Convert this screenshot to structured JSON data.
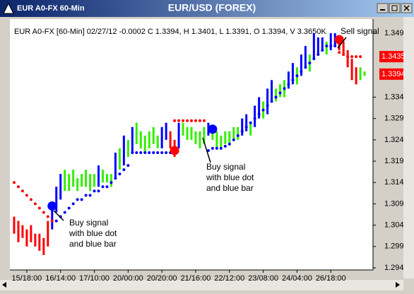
{
  "window_title": "EUR A0-FX 60-Min",
  "chart_data": {
    "type": "bar",
    "title": "EUR/USD (FOREX)",
    "subtitle": "EUR A0-FX [60-Min] 02/27/12  -0.0002 C 1.3394, H 1.3401, L 1.3391, O 1.3394, V 3.3650K",
    "x": [
      0,
      1,
      2,
      3,
      4,
      5,
      6,
      7,
      8,
      9,
      10,
      11,
      12,
      13,
      14,
      15,
      16,
      17,
      18,
      19,
      20,
      21,
      22,
      23,
      24,
      25,
      26,
      27,
      28,
      29,
      30,
      31,
      32,
      33,
      34,
      35,
      36,
      37,
      38,
      39,
      40,
      41,
      42,
      43,
      44,
      45,
      46,
      47,
      48,
      49,
      50,
      51,
      52,
      53,
      54,
      55,
      56,
      57,
      58,
      59,
      60,
      61,
      62,
      63,
      64,
      65,
      66,
      67,
      68,
      69,
      70,
      71,
      72,
      73,
      74,
      75,
      76,
      77,
      78,
      79,
      80,
      81,
      82,
      83
    ],
    "high": [
      1.306,
      1.305,
      1.304,
      1.303,
      1.304,
      1.302,
      1.302,
      1.301,
      1.305,
      1.309,
      1.313,
      1.316,
      1.317,
      1.316,
      1.317,
      1.315,
      1.316,
      1.317,
      1.316,
      1.316,
      1.318,
      1.317,
      1.316,
      1.316,
      1.321,
      1.322,
      1.325,
      1.324,
      1.327,
      1.328,
      1.326,
      1.325,
      1.326,
      1.327,
      1.325,
      1.327,
      1.328,
      1.326,
      1.324,
      1.328,
      1.328,
      1.327,
      1.327,
      1.326,
      1.326,
      1.327,
      1.328,
      1.327,
      1.326,
      1.325,
      1.326,
      1.326,
      1.327,
      1.327,
      1.329,
      1.33,
      1.328,
      1.332,
      1.334,
      1.333,
      1.336,
      1.338,
      1.336,
      1.337,
      1.338,
      1.34,
      1.342,
      1.341,
      1.344,
      1.346,
      1.344,
      1.349,
      1.348,
      1.348,
      1.347,
      1.349,
      1.349,
      1.348,
      1.347,
      1.345,
      1.343,
      1.341,
      1.341,
      1.34
    ],
    "low": [
      1.302,
      1.3,
      1.301,
      1.299,
      1.3,
      1.299,
      1.298,
      1.297,
      1.299,
      1.303,
      1.307,
      1.31,
      1.312,
      1.312,
      1.313,
      1.312,
      1.313,
      1.313,
      1.312,
      1.313,
      1.313,
      1.314,
      1.314,
      1.313,
      1.315,
      1.317,
      1.318,
      1.32,
      1.321,
      1.323,
      1.322,
      1.321,
      1.322,
      1.323,
      1.322,
      1.322,
      1.324,
      1.322,
      1.32,
      1.322,
      1.325,
      1.324,
      1.324,
      1.323,
      1.322,
      1.323,
      1.325,
      1.324,
      1.322,
      1.322,
      1.323,
      1.323,
      1.324,
      1.324,
      1.325,
      1.326,
      1.325,
      1.327,
      1.329,
      1.329,
      1.33,
      1.333,
      1.333,
      1.334,
      1.334,
      1.336,
      1.337,
      1.337,
      1.339,
      1.341,
      1.34,
      1.343,
      1.344,
      1.345,
      1.344,
      1.345,
      1.346,
      1.345,
      1.344,
      1.341,
      1.338,
      1.337,
      1.338,
      1.339
    ],
    "bar_colors": [
      "#ff0000",
      "#ff0000",
      "#ff0000",
      "#ff0000",
      "#ff0000",
      "#ff0000",
      "#ff0000",
      "#ff0000",
      "#ff0000",
      "#0000ff",
      "#0000ff",
      "#0000ff",
      "#33ee00",
      "#33ee00",
      "#33ee00",
      "#33ee00",
      "#33ee00",
      "#33ee00",
      "#33ee00",
      "#33ee00",
      "#0000ff",
      "#33ee00",
      "#33ee00",
      "#33ee00",
      "#0000ff",
      "#33ee00",
      "#0000ff",
      "#33ee00",
      "#0000ff",
      "#33ee00",
      "#33ee00",
      "#33ee00",
      "#33ee00",
      "#33ee00",
      "#33ee00",
      "#0000ff",
      "#0000ff",
      "#ff0000",
      "#ff0000",
      "#0000ff",
      "#33ee00",
      "#33ee00",
      "#33ee00",
      "#33ee00",
      "#33ee00",
      "#33ee00",
      "#0000ff",
      "#33ee00",
      "#33ee00",
      "#33ee00",
      "#33ee00",
      "#33ee00",
      "#33ee00",
      "#33ee00",
      "#0000ff",
      "#0000ff",
      "#33ee00",
      "#0000ff",
      "#0000ff",
      "#33ee00",
      "#0000ff",
      "#0000ff",
      "#33ee00",
      "#33ee00",
      "#33ee00",
      "#0000ff",
      "#0000ff",
      "#33ee00",
      "#0000ff",
      "#0000ff",
      "#33ee00",
      "#0000ff",
      "#0000ff",
      "#0000ff",
      "#33ee00",
      "#0000ff",
      "#0000ff",
      "#ff0000",
      "#ff0000",
      "#ff0000",
      "#ff0000",
      "#ff0000",
      "#33ee00",
      "#33ee00"
    ],
    "stops": [
      1.314,
      1.313,
      1.312,
      1.311,
      1.31,
      1.309,
      1.308,
      1.307,
      1.306,
      1.305,
      1.305,
      1.306,
      1.307,
      1.308,
      1.309,
      1.31,
      1.31,
      1.311,
      1.311,
      1.312,
      1.312,
      1.313,
      1.313,
      1.314,
      1.315,
      1.316,
      1.317,
      1.318,
      1.321,
      1.321,
      1.321,
      1.321,
      1.321,
      1.321,
      1.321,
      1.321,
      1.321,
      1.321,
      1.3285,
      1.3285,
      1.3285,
      1.3285,
      1.3285,
      1.3285,
      1.3285,
      1.3285,
      1.3215,
      1.322,
      1.322,
      1.322,
      1.3225,
      1.323,
      1.324,
      1.325,
      1.326,
      1.327,
      1.328,
      1.329,
      1.33,
      1.331,
      1.332,
      1.333,
      1.334,
      1.335,
      1.336,
      1.337,
      1.338,
      1.339,
      1.34,
      1.341,
      1.342,
      1.343,
      1.344,
      1.345,
      1.346,
      1.346,
      1.346,
      1.3445,
      1.344,
      1.3435,
      1.3435,
      1.3435,
      1.3435,
      null
    ],
    "stop_colors": [
      "#ff0000",
      "#ff0000",
      "#ff0000",
      "#ff0000",
      "#ff0000",
      "#ff0000",
      "#ff0000",
      "#ff0000",
      "#ff0000",
      "#ff0000",
      "#0000ff",
      "#0000ff",
      "#0000ff",
      "#0000ff",
      "#0000ff",
      "#0000ff",
      "#0000ff",
      "#0000ff",
      "#0000ff",
      "#0000ff",
      "#0000ff",
      "#0000ff",
      "#0000ff",
      "#0000ff",
      "#0000ff",
      "#0000ff",
      "#0000ff",
      "#0000ff",
      "#0000ff",
      "#0000ff",
      "#0000ff",
      "#0000ff",
      "#0000ff",
      "#0000ff",
      "#0000ff",
      "#0000ff",
      "#0000ff",
      "#0000ff",
      "#ff0000",
      "#ff0000",
      "#ff0000",
      "#ff0000",
      "#ff0000",
      "#ff0000",
      "#ff0000",
      "#ff0000",
      "#0000ff",
      "#0000ff",
      "#0000ff",
      "#0000ff",
      "#0000ff",
      "#0000ff",
      "#0000ff",
      "#0000ff",
      "#0000ff",
      "#0000ff",
      "#0000ff",
      "#0000ff",
      "#0000ff",
      "#0000ff",
      "#0000ff",
      "#0000ff",
      "#0000ff",
      "#0000ff",
      "#0000ff",
      "#0000ff",
      "#0000ff",
      "#0000ff",
      "#0000ff",
      "#0000ff",
      "#0000ff",
      "#0000ff",
      "#0000ff",
      "#0000ff",
      "#0000ff",
      "#0000ff",
      "#0000ff",
      "#ff0000",
      "#ff0000",
      "#ff0000",
      "#ff0000",
      "#ff0000",
      "#ff0000",
      "#ff0000"
    ],
    "signals": [
      {
        "x": 9,
        "value": 1.3085,
        "color": "#0000ff"
      },
      {
        "x": 38,
        "value": 1.3215,
        "color": "#ff0000"
      },
      {
        "x": 47,
        "value": 1.3265,
        "color": "#0000ff"
      },
      {
        "x": 77,
        "value": 1.3475,
        "color": "#ff0000"
      }
    ],
    "price_labels": [
      1.3435,
      1.3394
    ],
    "price_label_color": "#ff0000",
    "annotations": [
      [
        "Buy signal",
        "with blue dot",
        "and blue bar"
      ],
      [
        "Buy signal",
        "with blue dot",
        "and blue bar"
      ],
      [
        "Sell signal"
      ]
    ],
    "xlim": [
      -1,
      85
    ],
    "ylim": [
      1.2935,
      1.3523
    ],
    "xticks": [
      {
        "value": 3,
        "label": "15/18:00"
      },
      {
        "value": 11,
        "label": "16/14:00"
      },
      {
        "value": 19,
        "label": "17/10:00"
      },
      {
        "value": 27,
        "label": "20/00:00"
      },
      {
        "value": 35,
        "label": "20/20:00"
      },
      {
        "value": 43,
        "label": "21/16:00"
      },
      {
        "value": 51,
        "label": "22/12:00"
      },
      {
        "value": 59,
        "label": "23/08:00"
      },
      {
        "value": 67,
        "label": "24/04:00"
      },
      {
        "value": 75,
        "label": "26/18:00"
      }
    ],
    "yticks": [
      1.294,
      1.299,
      1.304,
      1.309,
      1.314,
      1.319,
      1.324,
      1.329,
      1.334,
      1.349
    ]
  }
}
